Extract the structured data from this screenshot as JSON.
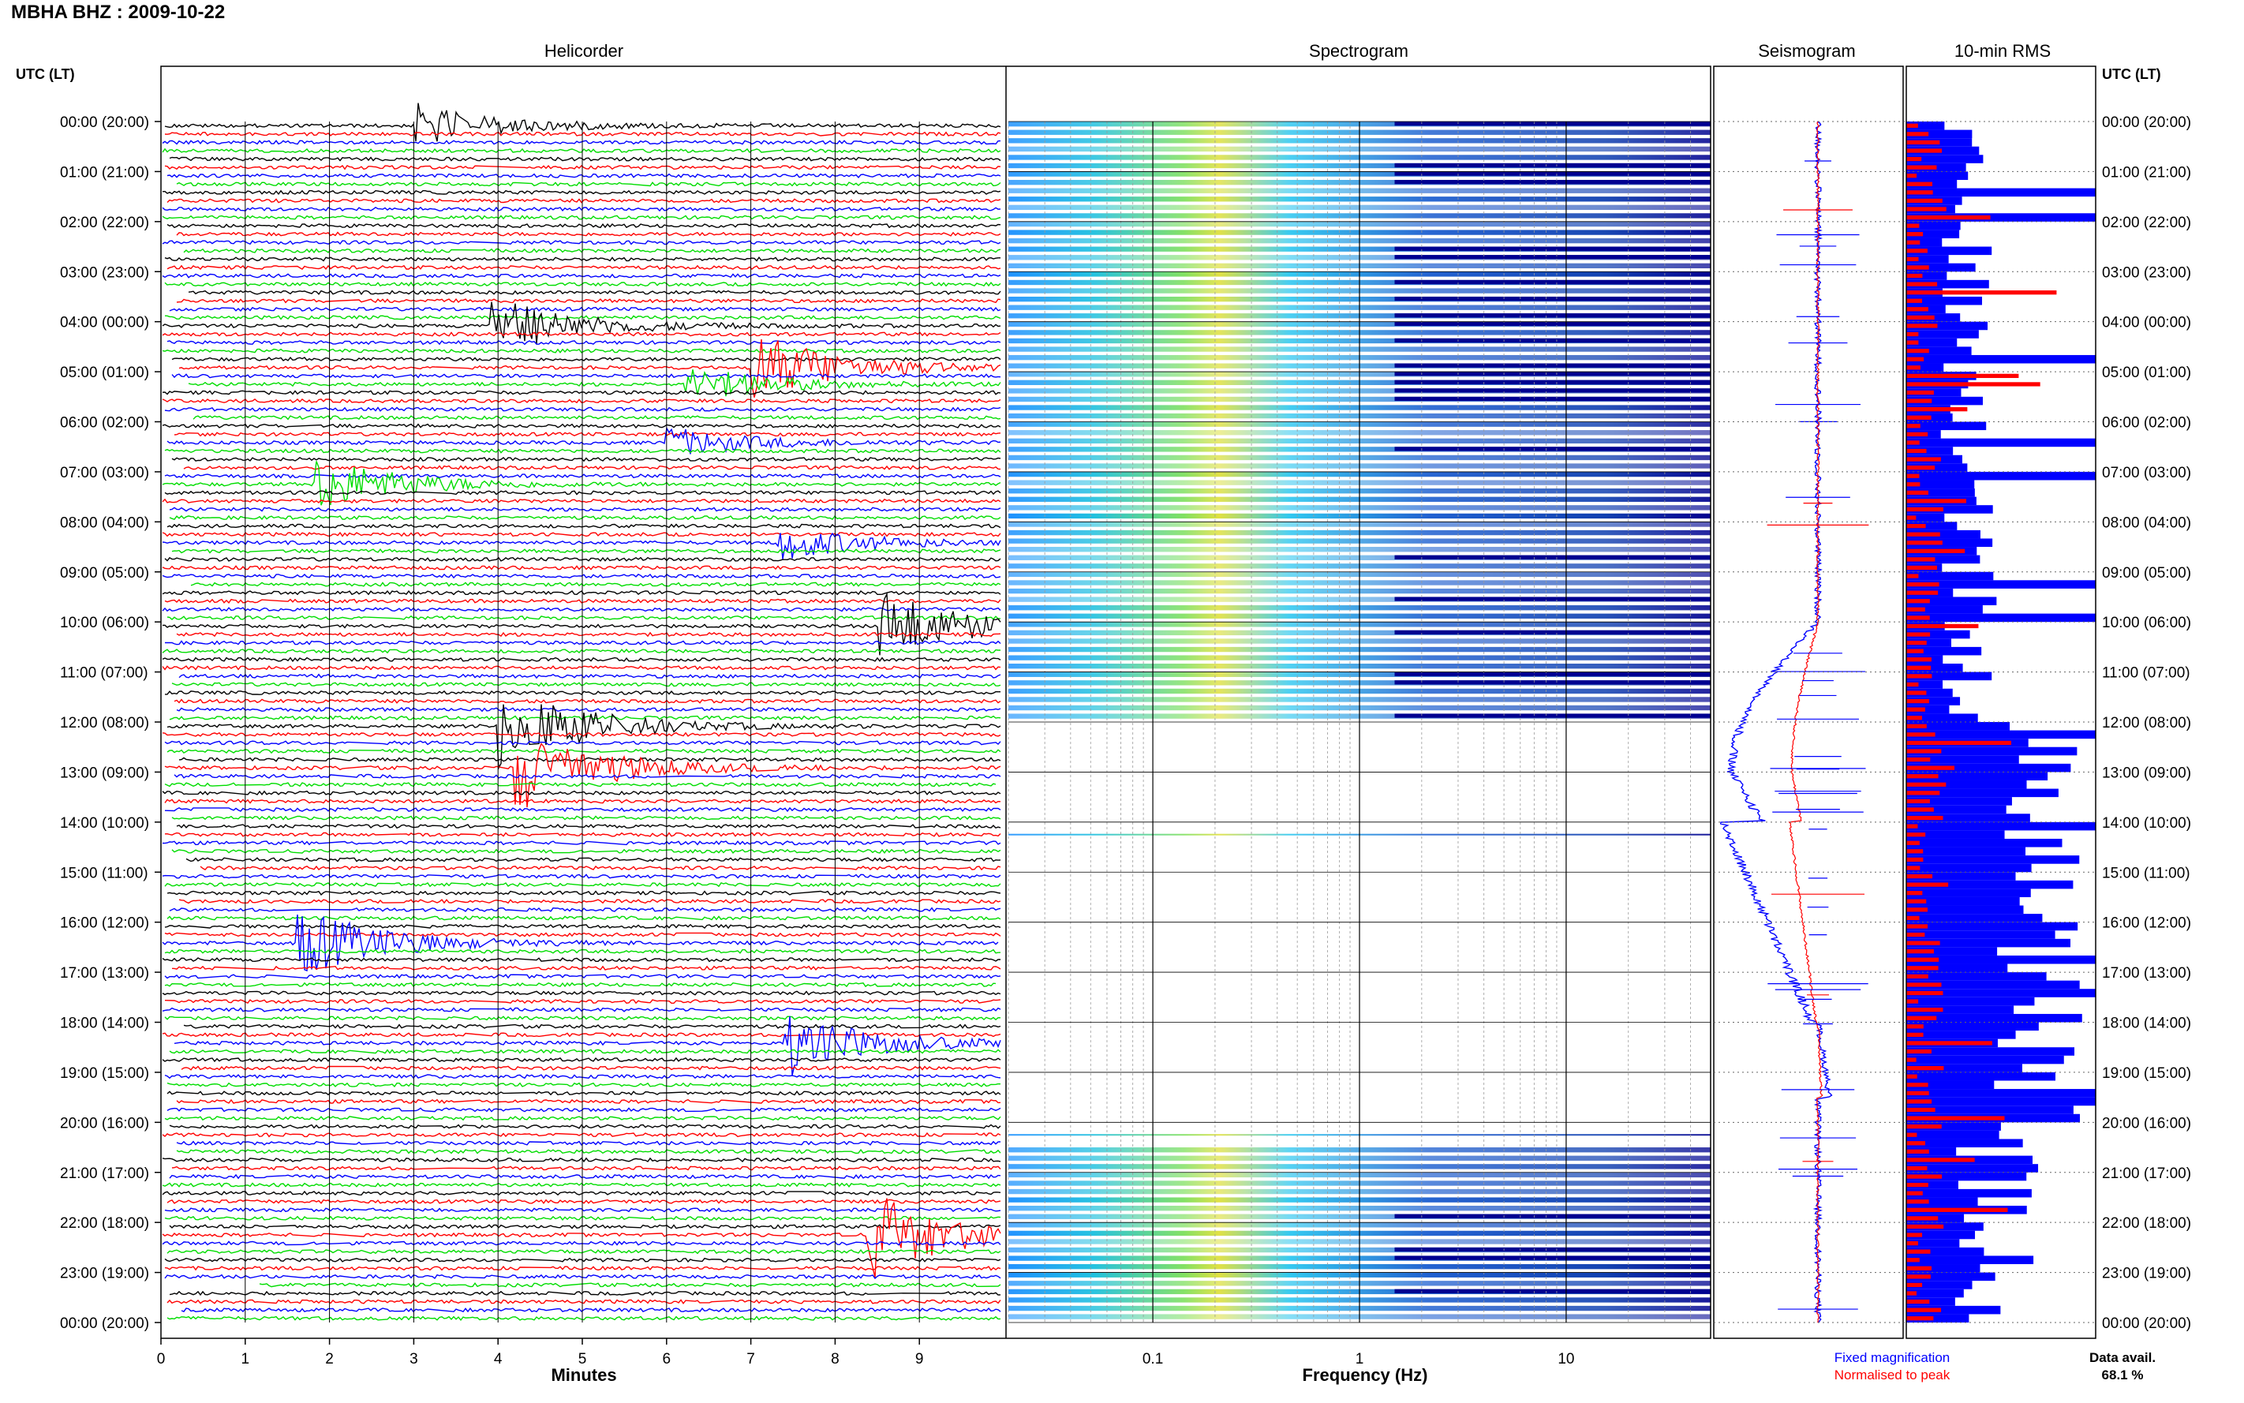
{
  "title": "MBHA BHZ : 2009-10-22",
  "panels": {
    "helicorder": "Helicorder",
    "spectrogram": "Spectrogram",
    "seismogram": "Seismogram",
    "rms": "10-min RMS"
  },
  "axis": {
    "utc_label": "UTC (LT)",
    "x_helicorder": "Minutes",
    "x_spectrogram": "Frequency (Hz)"
  },
  "legend": {
    "fixed": "Fixed magnification",
    "normalised": "Normalised to peak",
    "fixed_color": "#0000ff",
    "normalised_color": "#ff0000"
  },
  "data_avail": {
    "label": "Data avail.",
    "value": "68.1 %"
  },
  "colors": {
    "trace_cycle": [
      "#000000",
      "#ff0000",
      "#0000ff",
      "#00dd00"
    ],
    "spectrogram_low": "#00008f",
    "spectrogram_mid": "#00c8ff",
    "spectrogram_high": "#ffff00",
    "rms_bar_fixed": "#0000ff",
    "rms_bar_norm": "#ff0000"
  },
  "chart_data": [
    {
      "type": "line",
      "name": "helicorder",
      "xlabel": "Minutes",
      "xlim": [
        0,
        10
      ],
      "x_ticks": [
        0,
        1,
        2,
        3,
        4,
        5,
        6,
        7,
        8,
        9
      ],
      "rows_per_hour": 6,
      "hour_labels": [
        "00:00 (20:00)",
        "01:00 (21:00)",
        "02:00 (22:00)",
        "03:00 (23:00)",
        "04:00 (00:00)",
        "05:00 (01:00)",
        "06:00 (02:00)",
        "07:00 (03:00)",
        "08:00 (04:00)",
        "09:00 (05:00)",
        "10:00 (06:00)",
        "11:00 (07:00)",
        "12:00 (08:00)",
        "13:00 (09:00)",
        "14:00 (10:00)",
        "15:00 (11:00)",
        "16:00 (12:00)",
        "17:00 (13:00)",
        "18:00 (14:00)",
        "19:00 (15:00)",
        "20:00 (16:00)",
        "21:00 (17:00)",
        "22:00 (18:00)",
        "23:00 (19:00)",
        "00:00 (20:00)"
      ],
      "events": [
        {
          "row": 0,
          "start_min": 3.0,
          "amp": 3.0
        },
        {
          "row": 24,
          "start_min": 3.9,
          "amp": 4.0
        },
        {
          "row": 29,
          "start_min": 7.0,
          "amp": 5.0
        },
        {
          "row": 31,
          "start_min": 6.2,
          "amp": 2.5
        },
        {
          "row": 38,
          "start_min": 6.0,
          "amp": 2.0
        },
        {
          "row": 43,
          "start_min": 1.8,
          "amp": 4.0
        },
        {
          "row": 50,
          "start_min": 7.3,
          "amp": 2.5
        },
        {
          "row": 60,
          "start_min": 8.5,
          "amp": 5.0
        },
        {
          "row": 72,
          "start_min": 4.0,
          "amp": 6.0
        },
        {
          "row": 77,
          "start_min": 4.2,
          "amp": 6.0
        },
        {
          "row": 98,
          "start_min": 1.6,
          "amp": 5.0
        },
        {
          "row": 110,
          "start_min": 7.4,
          "amp": 4.5
        },
        {
          "row": 133,
          "start_min": 8.4,
          "amp": 6.0
        }
      ]
    },
    {
      "type": "heatmap",
      "name": "spectrogram",
      "xlabel": "Frequency (Hz)",
      "xscale": "log",
      "xlim": [
        0.02,
        50
      ],
      "x_ticks": [
        0.1,
        1,
        10
      ],
      "tick_labels": [
        "0.1",
        "1",
        "10"
      ],
      "gap_hours": [
        [
          12,
          20.5
        ]
      ]
    },
    {
      "type": "line",
      "name": "seismogram",
      "series": [
        {
          "name": "Fixed magnification",
          "color": "#0000ff"
        },
        {
          "name": "Normalised to peak",
          "color": "#ff0000"
        }
      ]
    },
    {
      "type": "bar",
      "name": "10-min RMS",
      "orientation": "horizontal"
    }
  ]
}
